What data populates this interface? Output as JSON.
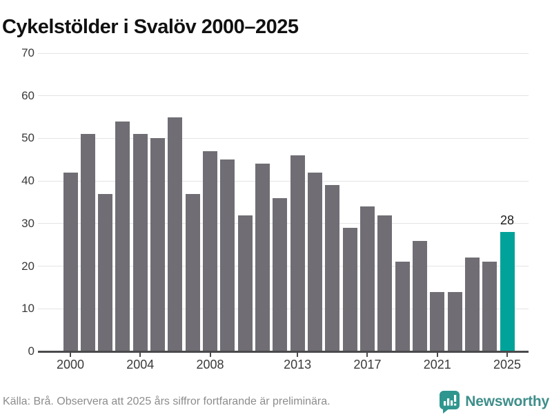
{
  "title": "Cykelstölder i Svalöv 2000–2025",
  "chart_data": {
    "type": "bar",
    "title": "Cykelstölder i Svalöv 2000–2025",
    "categories": [
      2000,
      2001,
      2002,
      2003,
      2004,
      2005,
      2006,
      2007,
      2008,
      2009,
      2010,
      2011,
      2012,
      2013,
      2014,
      2015,
      2016,
      2017,
      2018,
      2019,
      2020,
      2021,
      2022,
      2023,
      2024,
      2025
    ],
    "values": [
      42,
      51,
      37,
      54,
      51,
      50,
      55,
      37,
      47,
      45,
      32,
      44,
      36,
      46,
      42,
      39,
      29,
      34,
      32,
      21,
      26,
      14,
      14,
      22,
      21,
      28
    ],
    "highlight_index": 25,
    "highlight_value_label": "28",
    "xlabel": "",
    "ylabel": "",
    "ylim": [
      0,
      70
    ],
    "y_ticks": [
      0,
      10,
      20,
      30,
      40,
      50,
      60,
      70
    ],
    "x_tick_labels": [
      "2000",
      "2004",
      "2008",
      "2013",
      "2017",
      "2021",
      "2025"
    ],
    "x_tick_indices": [
      0,
      4,
      8,
      13,
      17,
      21,
      25
    ],
    "grid": "horizontal",
    "legend": "none",
    "bar_color": "#706E74",
    "highlight_color": "#00A29A",
    "gridline_color": "#e4e4e4",
    "axis_color": "#4a4a4c"
  },
  "footer": {
    "source_note": "Källa: Brå. Observera att 2025 års siffror fortfarande är preliminära.",
    "brand_name": "Newsworthy"
  },
  "colors": {
    "background": "#ffffff",
    "title_text": "#111111",
    "tick_text": "#3a3a3a",
    "footer_text": "#8c8c8c",
    "brand_teal": "#3e8e8a",
    "logo_teal": "#2f968f"
  }
}
